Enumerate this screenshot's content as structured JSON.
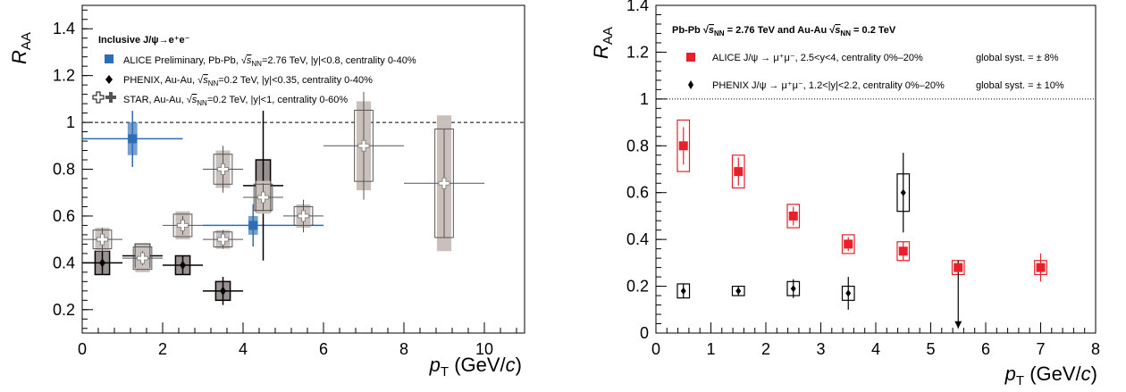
{
  "chart_data": [
    {
      "type": "scatter",
      "xlabel_main": "p",
      "xlabel_sub": "T",
      "xlabel_unit_pre": " (GeV/",
      "xlabel_unit_var": "c",
      "xlabel_unit_post": ")",
      "ylabel_main": "R",
      "ylabel_sub": "AA",
      "xlim": [
        0,
        11
      ],
      "ylim": [
        0.1,
        1.5
      ],
      "xticks": [
        0,
        2,
        4,
        6,
        8,
        10
      ],
      "yticks": [
        0.2,
        0.4,
        0.6,
        0.8,
        1,
        1.2,
        1.4
      ],
      "reference_line": 1,
      "legend_title": "Inclusive J/ψ→e⁺e⁻",
      "legend_entries": [
        "ALICE Preliminary, Pb-Pb, √sNN=2.76 TeV, |y|<0.8, centrality 0-40%",
        "PHENIX, Au-Au, √sNN=0.2 TeV, |y|<0.35, centrality 0-40%",
        "STAR, Au-Au, √sNN=0.2 TeV, |y|<1, centrality 0-60%"
      ],
      "legend_entry_names": [
        "ALICE Preliminary, Pb-Pb, ",
        "PHENIX, Au-Au, ",
        "STAR, Au-Au, "
      ],
      "legend_entry_energy": [
        "=2.76 TeV, |y|<0.8, centrality 0-40%",
        "=0.2 TeV, |y|<0.35, centrality 0-40%",
        "=0.2 TeV, |y|<1, centrality 0-60%"
      ],
      "colors": {
        "alice": "#2d6db5",
        "alice_box": "#4a7fc0",
        "star_band": "#c9c0bc",
        "phenix_box": "#9a9290"
      },
      "series": [
        {
          "key": "alice",
          "points": [
            {
              "x": 1.25,
              "y": 0.93,
              "xerr": [
                1.25,
                1.25
              ],
              "yerr": 0.07,
              "syst": 0.07
            },
            {
              "x": 4.25,
              "y": 0.56,
              "xerr": [
                1.25,
                1.75
              ],
              "yerr": 0.04,
              "syst": 0.04
            }
          ]
        },
        {
          "key": "phenix",
          "points": [
            {
              "x": 0.5,
              "y": 0.4,
              "xerr": 0.5,
              "yerr": 0.05,
              "syst": 0.05
            },
            {
              "x": 1.5,
              "y": 0.43,
              "xerr": 0.5,
              "yerr": 0.05,
              "syst": 0.05
            },
            {
              "x": 2.5,
              "y": 0.39,
              "xerr": 0.5,
              "yerr": 0.04,
              "syst": 0.04
            },
            {
              "x": 3.5,
              "y": 0.28,
              "xerr": 0.5,
              "yerr": 0.06,
              "syst": 0.04
            },
            {
              "x": 4.5,
              "y": 0.73,
              "xerr": 0.5,
              "yerr": 0.32,
              "syst": 0.11
            }
          ]
        },
        {
          "key": "star",
          "points": [
            {
              "x": 0.5,
              "y": 0.5,
              "xerr": 0.5,
              "yerr": 0.05,
              "syst": 0.05
            },
            {
              "x": 1.5,
              "y": 0.42,
              "xerr": 0.5,
              "yerr": 0.03,
              "syst": 0.06
            },
            {
              "x": 2.5,
              "y": 0.56,
              "xerr": 0.5,
              "yerr": 0.04,
              "syst": 0.06
            },
            {
              "x": 3.5,
              "y": 0.5,
              "xerr": 0.5,
              "yerr": 0.04,
              "syst": 0.04
            },
            {
              "x": 3.5,
              "y": 0.8,
              "xerr": 0.5,
              "yerr": 0.1,
              "syst": 0.08
            },
            {
              "x": 4.5,
              "y": 0.68,
              "xerr": 0.5,
              "yerr": 0.06,
              "syst": 0.07
            },
            {
              "x": 5.5,
              "y": 0.6,
              "xerr": 0.5,
              "yerr": 0.07,
              "syst": 0.05
            },
            {
              "x": 7.0,
              "y": 0.9,
              "xerr": 1.0,
              "yerr": 0.23,
              "syst": 0.19
            },
            {
              "x": 9.0,
              "y": 0.74,
              "xerr": 1.0,
              "yerr": 0.23,
              "syst": 0.29
            }
          ]
        }
      ]
    },
    {
      "type": "scatter",
      "xlabel_main": "p",
      "xlabel_sub": "T",
      "xlabel_unit_pre": " (GeV/",
      "xlabel_unit_var": "c",
      "xlabel_unit_post": ")",
      "ylabel_main": "R",
      "ylabel_sub": "AA",
      "xlim": [
        0,
        8
      ],
      "ylim": [
        0,
        1.4
      ],
      "xticks": [
        0,
        1,
        2,
        3,
        4,
        5,
        6,
        7,
        8
      ],
      "yticks": [
        0,
        0.2,
        0.4,
        0.6,
        0.8,
        1,
        1.2,
        1.4
      ],
      "reference_line": 1,
      "header_pre": "Pb-Pb ",
      "header_mid": " = 2.76 TeV and Au-Au ",
      "header_post": " = 0.2 TeV",
      "legend_entries": [
        "ALICE J/ψ → μ⁺μ⁻, 2.5<y<4, centrality 0%–20%",
        "PHENIX J/ψ → μ⁺μ⁻, 1.2<|y|<2.2, centrality 0%–20%"
      ],
      "global_syst": [
        "global syst. = ± 8%",
        "global syst. = ± 10%"
      ],
      "colors": {
        "alice": "#e8202a",
        "phenix": "#000000"
      },
      "series": [
        {
          "key": "alice",
          "points": [
            {
              "x": 0.5,
              "y": 0.8,
              "yerr": 0.08,
              "syst": 0.11
            },
            {
              "x": 1.5,
              "y": 0.69,
              "yerr": 0.06,
              "syst": 0.07
            },
            {
              "x": 2.5,
              "y": 0.5,
              "yerr": 0.04,
              "syst": 0.05
            },
            {
              "x": 3.5,
              "y": 0.38,
              "yerr": 0.03,
              "syst": 0.04
            },
            {
              "x": 4.5,
              "y": 0.35,
              "yerr": 0.04,
              "syst": 0.04
            },
            {
              "x": 5.5,
              "y": 0.28,
              "yerr": 0.03,
              "syst": 0.03,
              "upper_limit": true
            },
            {
              "x": 7.0,
              "y": 0.28,
              "yerr": 0.06,
              "syst": 0.03
            }
          ]
        },
        {
          "key": "phenix",
          "points": [
            {
              "x": 0.5,
              "y": 0.18,
              "yerr": 0.03,
              "syst": 0.03
            },
            {
              "x": 1.5,
              "y": 0.18,
              "yerr": 0.02,
              "syst": 0.02
            },
            {
              "x": 2.5,
              "y": 0.19,
              "yerr": 0.04,
              "syst": 0.03
            },
            {
              "x": 3.5,
              "y": 0.17,
              "yerr": 0.07,
              "syst": 0.03
            },
            {
              "x": 4.5,
              "y": 0.6,
              "yerr": 0.17,
              "syst": 0.08
            }
          ]
        }
      ]
    }
  ]
}
